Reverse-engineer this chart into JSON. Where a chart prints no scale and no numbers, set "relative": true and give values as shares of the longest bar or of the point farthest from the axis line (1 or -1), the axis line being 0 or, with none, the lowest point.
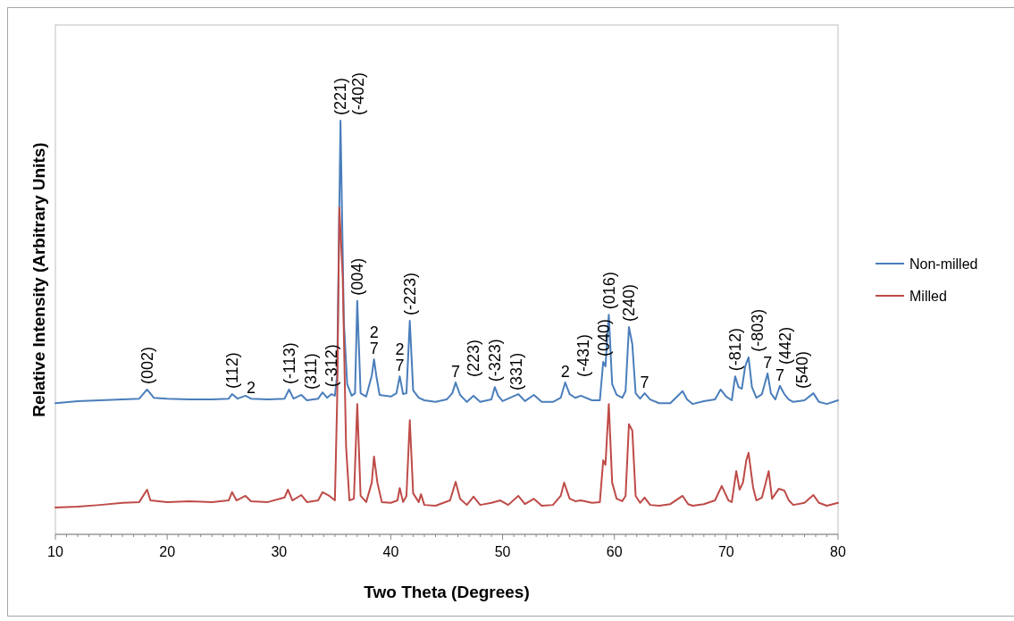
{
  "chart_data": {
    "type": "line",
    "relative": true,
    "xlabel": "Two Theta (Degrees)",
    "ylabel": "Relative Intensity (Arbitrary Units)",
    "xlim": [
      10,
      80
    ],
    "xticks": [
      10,
      {
        "value": 11,
        "label": null
      },
      {
        "value": 12,
        "label": null
      },
      {
        "value": 13,
        "label": null
      },
      {
        "value": 14,
        "label": null
      },
      {
        "value": 15,
        "label": null
      },
      {
        "value": 16,
        "label": null
      },
      {
        "value": 17,
        "label": null
      },
      {
        "value": 18,
        "label": null
      },
      {
        "value": 19,
        "label": null
      },
      20,
      {
        "value": 21,
        "label": null
      },
      {
        "value": 22,
        "label": null
      },
      {
        "value": 23,
        "label": null
      },
      {
        "value": 24,
        "label": null
      },
      {
        "value": 25,
        "label": null
      },
      {
        "value": 26,
        "label": null
      },
      {
        "value": 27,
        "label": null
      },
      {
        "value": 28,
        "label": null
      },
      {
        "value": 29,
        "label": null
      },
      30,
      {
        "value": 31,
        "label": null
      },
      {
        "value": 32,
        "label": null
      },
      {
        "value": 33,
        "label": null
      },
      {
        "value": 34,
        "label": null
      },
      {
        "value": 35,
        "label": null
      },
      {
        "value": 36,
        "label": null
      },
      {
        "value": 37,
        "label": null
      },
      {
        "value": 38,
        "label": null
      },
      {
        "value": 39,
        "label": null
      },
      40,
      {
        "value": 41,
        "label": null
      },
      {
        "value": 42,
        "label": null
      },
      {
        "value": 43,
        "label": null
      },
      {
        "value": 44,
        "label": null
      },
      {
        "value": 45,
        "label": null
      },
      {
        "value": 46,
        "label": null
      },
      {
        "value": 47,
        "label": null
      },
      {
        "value": 48,
        "label": null
      },
      {
        "value": 49,
        "label": null
      },
      50,
      {
        "value": 51,
        "label": null
      },
      {
        "value": 52,
        "label": null
      },
      {
        "value": 53,
        "label": null
      },
      {
        "value": 54,
        "label": null
      },
      {
        "value": 55,
        "label": null
      },
      {
        "value": 56,
        "label": null
      },
      {
        "value": 57,
        "label": null
      },
      {
        "value": 58,
        "label": null
      },
      {
        "value": 59,
        "label": null
      },
      60,
      {
        "value": 61,
        "label": null
      },
      {
        "value": 62,
        "label": null
      },
      {
        "value": 63,
        "label": null
      },
      {
        "value": 64,
        "label": null
      },
      {
        "value": 65,
        "label": null
      },
      {
        "value": 66,
        "label": null
      },
      {
        "value": 67,
        "label": null
      },
      {
        "value": 68,
        "label": null
      },
      {
        "value": 69,
        "label": null
      },
      70,
      {
        "value": 71,
        "label": null
      },
      {
        "value": 72,
        "label": null
      },
      {
        "value": 73,
        "label": null
      },
      {
        "value": 74,
        "label": null
      },
      {
        "value": 75,
        "label": null
      },
      {
        "value": 76,
        "label": null
      },
      {
        "value": 77,
        "label": null
      },
      {
        "value": 78,
        "label": null
      },
      {
        "value": 79,
        "label": null
      },
      80
    ],
    "grid": false,
    "legend": "right",
    "marker": "none",
    "line_style": "solid",
    "series": [
      {
        "name": "Non-milled",
        "color": "#4a7ebb",
        "x": [
          10,
          12,
          14,
          16,
          17.5,
          18.2,
          18.8,
          20,
          22,
          24,
          25.5,
          25.8,
          26.3,
          27,
          27.5,
          29,
          30.5,
          30.9,
          31.3,
          32,
          32.5,
          33.5,
          33.9,
          34.3,
          34.7,
          35.0,
          35.2,
          35.5,
          35.8,
          36.1,
          36.5,
          36.8,
          37.0,
          37.3,
          37.8,
          38.3,
          38.5,
          38.7,
          39.0,
          40,
          40.5,
          40.8,
          41.1,
          41.4,
          41.7,
          42.0,
          42.5,
          43,
          44,
          45,
          45.5,
          45.8,
          46.2,
          46.8,
          47.4,
          48,
          49,
          49.3,
          49.6,
          50,
          51.4,
          52,
          52.8,
          53.5,
          54.5,
          55.2,
          55.6,
          56,
          56.5,
          57,
          58,
          58.7,
          59.0,
          59.2,
          59.5,
          59.8,
          60.2,
          60.7,
          61.0,
          61.3,
          61.6,
          61.9,
          62.3,
          62.7,
          63.2,
          64,
          65,
          66.1,
          66.5,
          67,
          68,
          69,
          69.5,
          70,
          70.5,
          70.8,
          71.1,
          71.4,
          71.7,
          72.0,
          72.3,
          72.7,
          73.2,
          73.7,
          74.0,
          74.4,
          74.8,
          75.2,
          75.6,
          76,
          77,
          77.8,
          78.3,
          79,
          80
        ],
        "values": [
          0.317,
          0.322,
          0.324,
          0.326,
          0.328,
          0.35,
          0.33,
          0.328,
          0.326,
          0.326,
          0.328,
          0.339,
          0.328,
          0.335,
          0.328,
          0.326,
          0.328,
          0.35,
          0.328,
          0.337,
          0.324,
          0.328,
          0.343,
          0.33,
          0.339,
          0.335,
          0.384,
          1,
          0.514,
          0.363,
          0.335,
          0.341,
          0.564,
          0.341,
          0.333,
          0.384,
          0.423,
          0.384,
          0.337,
          0.333,
          0.341,
          0.382,
          0.339,
          0.341,
          0.516,
          0.348,
          0.33,
          0.324,
          0.32,
          0.326,
          0.341,
          0.367,
          0.337,
          0.32,
          0.335,
          0.32,
          0.326,
          0.356,
          0.335,
          0.322,
          0.339,
          0.322,
          0.337,
          0.32,
          0.32,
          0.33,
          0.367,
          0.339,
          0.33,
          0.335,
          0.324,
          0.324,
          0.417,
          0.406,
          0.531,
          0.363,
          0.337,
          0.33,
          0.346,
          0.501,
          0.46,
          0.341,
          0.328,
          0.341,
          0.326,
          0.317,
          0.317,
          0.346,
          0.326,
          0.315,
          0.322,
          0.326,
          0.35,
          0.333,
          0.324,
          0.382,
          0.356,
          0.352,
          0.406,
          0.428,
          0.356,
          0.33,
          0.339,
          0.389,
          0.341,
          0.326,
          0.359,
          0.339,
          0.326,
          0.32,
          0.324,
          0.341,
          0.32,
          0.315,
          0.324
        ]
      },
      {
        "name": "Milled",
        "color": "#be4b48",
        "x": [
          10,
          12,
          14,
          16,
          17.5,
          18.2,
          18.5,
          20,
          22,
          24,
          25.5,
          25.8,
          26.2,
          27,
          27.5,
          29,
          30.5,
          30.8,
          31.2,
          32,
          32.5,
          33.5,
          33.9,
          34.5,
          35.0,
          35.2,
          35.4,
          35.7,
          36.0,
          36.3,
          36.7,
          37.0,
          37.3,
          37.8,
          38.3,
          38.5,
          38.8,
          39.2,
          40,
          40.6,
          40.8,
          41.1,
          41.4,
          41.7,
          42.0,
          42.5,
          42.7,
          43.0,
          44,
          45.3,
          45.8,
          46.2,
          46.8,
          47.4,
          48,
          49,
          49.8,
          50.5,
          51.4,
          52,
          52.8,
          53.5,
          54.5,
          55.2,
          55.5,
          56,
          56.5,
          57,
          58,
          58.7,
          59.0,
          59.2,
          59.5,
          59.8,
          60.2,
          60.7,
          61.0,
          61.3,
          61.6,
          61.9,
          62.3,
          62.7,
          63.2,
          64,
          65,
          66.1,
          66.6,
          67,
          68,
          69,
          69.6,
          70.2,
          70.5,
          70.9,
          71.2,
          71.5,
          71.8,
          72.0,
          72.4,
          72.7,
          73.2,
          73.8,
          74.1,
          74.7,
          75.2,
          75.6,
          76,
          77,
          77.8,
          78.3,
          79,
          80
        ],
        "values": [
          0.065,
          0.067,
          0.071,
          0.076,
          0.078,
          0.108,
          0.082,
          0.078,
          0.08,
          0.078,
          0.082,
          0.102,
          0.082,
          0.093,
          0.08,
          0.078,
          0.089,
          0.108,
          0.082,
          0.095,
          0.078,
          0.082,
          0.102,
          0.093,
          0.082,
          0.32,
          0.79,
          0.622,
          0.212,
          0.082,
          0.086,
          0.315,
          0.093,
          0.078,
          0.125,
          0.188,
          0.125,
          0.078,
          0.076,
          0.082,
          0.112,
          0.078,
          0.093,
          0.276,
          0.099,
          0.078,
          0.097,
          0.071,
          0.069,
          0.082,
          0.127,
          0.086,
          0.071,
          0.091,
          0.071,
          0.076,
          0.082,
          0.071,
          0.093,
          0.073,
          0.086,
          0.069,
          0.071,
          0.093,
          0.125,
          0.086,
          0.08,
          0.082,
          0.076,
          0.078,
          0.179,
          0.168,
          0.315,
          0.125,
          0.086,
          0.08,
          0.093,
          0.266,
          0.251,
          0.093,
          0.076,
          0.089,
          0.071,
          0.069,
          0.073,
          0.093,
          0.073,
          0.069,
          0.073,
          0.082,
          0.117,
          0.082,
          0.078,
          0.153,
          0.108,
          0.125,
          0.179,
          0.197,
          0.114,
          0.082,
          0.089,
          0.153,
          0.086,
          0.11,
          0.106,
          0.082,
          0.071,
          0.076,
          0.095,
          0.076,
          0.069,
          0.076
        ]
      }
    ],
    "annotations": [
      {
        "text": "(002)",
        "x": 18.2,
        "y": 0.35
      },
      {
        "text": "(112)",
        "x": 25.8,
        "y": 0.339
      },
      {
        "text": "2",
        "x": 27.5,
        "y": 0.328
      },
      {
        "text": "(-113)",
        "x": 30.9,
        "y": 0.35
      },
      {
        "text": "(311)",
        "x": 32.0,
        "y": 0.337
      },
      {
        "text": "(-312)",
        "x": 33.9,
        "y": 0.343
      },
      {
        "text": "(221)",
        "x": 35.5,
        "y": 1
      },
      {
        "text": "(-402)",
        "x": 35.5,
        "y": 1
      },
      {
        "text": "(004)",
        "x": 37.0,
        "y": 0.564
      },
      {
        "text": "7",
        "x": 38.5,
        "y": 0.423
      },
      {
        "text": "2",
        "x": 38.5,
        "y": 0.423
      },
      {
        "text": "7",
        "x": 40.8,
        "y": 0.382
      },
      {
        "text": "2",
        "x": 40.8,
        "y": 0.382
      },
      {
        "text": "(-223)",
        "x": 41.7,
        "y": 0.516
      },
      {
        "text": "7",
        "x": 45.8,
        "y": 0.367
      },
      {
        "text": "(223)",
        "x": 45.8,
        "y": 0.367
      },
      {
        "text": "(-323)",
        "x": 49.3,
        "y": 0.356
      },
      {
        "text": "(331)",
        "x": 49.6,
        "y": 0.335
      },
      {
        "text": "2",
        "x": 55.6,
        "y": 0.367
      },
      {
        "text": "(-431)",
        "x": 55.6,
        "y": 0.367
      },
      {
        "text": "(040)",
        "x": 59.0,
        "y": 0.417
      },
      {
        "text": "(016)",
        "x": 59.5,
        "y": 0.531
      },
      {
        "text": "(240)",
        "x": 61.3,
        "y": 0.501
      },
      {
        "text": "7",
        "x": 62.7,
        "y": 0.341
      },
      {
        "text": "(-812)",
        "x": 70.8,
        "y": 0.382
      },
      {
        "text": "(-803)",
        "x": 72.0,
        "y": 0.428
      },
      {
        "text": "7",
        "x": 73.7,
        "y": 0.389
      },
      {
        "text": "(442)",
        "x": 73.7,
        "y": 0.389
      },
      {
        "text": "7",
        "x": 74.8,
        "y": 0.359
      },
      {
        "text": "(540)",
        "x": 75.2,
        "y": 0.339
      }
    ]
  }
}
